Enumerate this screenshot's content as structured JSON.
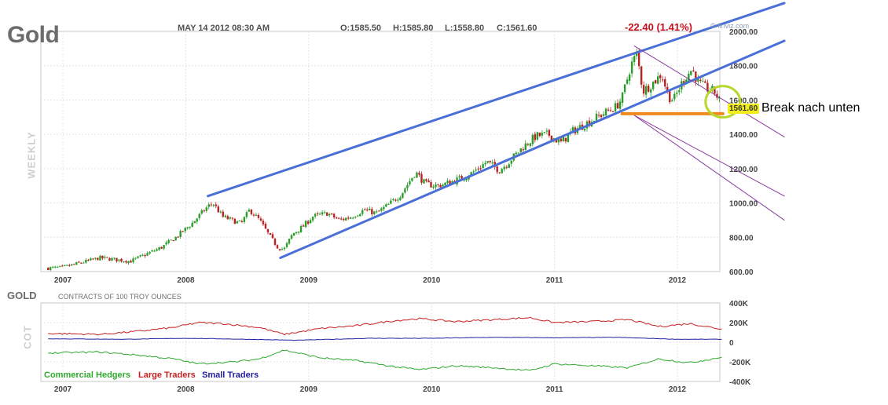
{
  "header": {
    "title": "Gold",
    "date": "MAY 14 2012 08:30 AM",
    "open": "O:1585.50",
    "high": "H:1585.80",
    "low": "L:1558.80",
    "close": "C:1561.60",
    "change": "-22.40 (1.41%)",
    "brand": "© finviz.com",
    "period": "WEEKLY"
  },
  "annotation": {
    "text": "Break nach unten",
    "last_price": "1561.60"
  },
  "cot": {
    "title": "GOLD",
    "subtitle": "CONTRACTS OF 100 TROY OUNCES",
    "axis_label": "COT",
    "legend": [
      {
        "label": "Commercial Hedgers",
        "color": "#2ea82e"
      },
      {
        "label": "Large Traders",
        "color": "#c82020"
      },
      {
        "label": "Small Traders",
        "color": "#2020a0"
      }
    ]
  },
  "colors": {
    "up": "#2a9d2a",
    "down": "#b82222",
    "channel": "#4a6fd6",
    "fork": "#8a3aa0",
    "support": "#f08a1e",
    "circle": "#b6d82a"
  },
  "chart_data": [
    {
      "type": "candlestick",
      "title": "Gold",
      "ylabel": "",
      "x_ticks": [
        "2007",
        "2008",
        "2009",
        "2010",
        "2011",
        "2012"
      ],
      "x_range": [
        2006.88,
        2012.42
      ],
      "y_ticks": [
        "600.00",
        "800.00",
        "1000.00",
        "1200.00",
        "1400.00",
        "1600.00",
        "1800.00",
        "2000.00"
      ],
      "ylim": [
        600,
        2000
      ],
      "price_anchors": [
        [
          2006.88,
          620
        ],
        [
          2007.0,
          625
        ],
        [
          2007.3,
          680
        ],
        [
          2007.55,
          660
        ],
        [
          2007.8,
          740
        ],
        [
          2007.92,
          800
        ],
        [
          2008.05,
          880
        ],
        [
          2008.18,
          980
        ],
        [
          2008.22,
          1000
        ],
        [
          2008.3,
          920
        ],
        [
          2008.45,
          880
        ],
        [
          2008.52,
          960
        ],
        [
          2008.6,
          900
        ],
        [
          2008.67,
          820
        ],
        [
          2008.75,
          740
        ],
        [
          2008.8,
          730
        ],
        [
          2008.87,
          820
        ],
        [
          2008.95,
          860
        ],
        [
          2009.03,
          920
        ],
        [
          2009.15,
          940
        ],
        [
          2009.25,
          900
        ],
        [
          2009.35,
          920
        ],
        [
          2009.45,
          960
        ],
        [
          2009.55,
          940
        ],
        [
          2009.65,
          990
        ],
        [
          2009.75,
          1050
        ],
        [
          2009.87,
          1180
        ],
        [
          2009.95,
          1110
        ],
        [
          2010.05,
          1100
        ],
        [
          2010.15,
          1120
        ],
        [
          2010.3,
          1160
        ],
        [
          2010.45,
          1240
        ],
        [
          2010.55,
          1190
        ],
        [
          2010.6,
          1220
        ],
        [
          2010.75,
          1330
        ],
        [
          2010.85,
          1390
        ],
        [
          2010.95,
          1400
        ],
        [
          2011.05,
          1350
        ],
        [
          2011.15,
          1420
        ],
        [
          2011.3,
          1480
        ],
        [
          2011.42,
          1530
        ],
        [
          2011.5,
          1560
        ],
        [
          2011.55,
          1610
        ],
        [
          2011.62,
          1800
        ],
        [
          2011.67,
          1870
        ],
        [
          2011.72,
          1650
        ],
        [
          2011.8,
          1700
        ],
        [
          2011.87,
          1750
        ],
        [
          2011.93,
          1620
        ],
        [
          2011.97,
          1600
        ],
        [
          2012.05,
          1720
        ],
        [
          2012.12,
          1780
        ],
        [
          2012.17,
          1700
        ],
        [
          2012.23,
          1670
        ],
        [
          2012.3,
          1650
        ],
        [
          2012.37,
          1561.6
        ]
      ],
      "annotations": [
        {
          "type": "channel_upper",
          "from": [
            2008.18,
            1040
          ],
          "to": [
            2012.87,
            2165
          ]
        },
        {
          "type": "channel_lower",
          "from": [
            2008.77,
            680
          ],
          "to": [
            2012.87,
            1945
          ]
        },
        {
          "type": "fork_median",
          "from": [
            2011.65,
            1915
          ],
          "to": [
            2012.87,
            1385
          ]
        },
        {
          "type": "fork_lower_1",
          "from": [
            2011.65,
            1510
          ],
          "to": [
            2012.87,
            1040
          ]
        },
        {
          "type": "fork_lower_2",
          "from": [
            2011.65,
            1510
          ],
          "to": [
            2012.87,
            900
          ]
        },
        {
          "type": "support",
          "from": [
            2011.55,
            1520
          ],
          "to": [
            2012.37,
            1520
          ]
        }
      ]
    },
    {
      "type": "line",
      "title": "GOLD",
      "subtitle": "CONTRACTS OF 100 TROY OUNCES",
      "x_ticks": [
        "2007",
        "2008",
        "2009",
        "2010",
        "2011",
        "2012"
      ],
      "x_range": [
        2006.88,
        2012.42
      ],
      "y_ticks": [
        "400K",
        "200K",
        "0",
        "-200K",
        "-400K"
      ],
      "ylim": [
        -400,
        400
      ],
      "series": [
        {
          "name": "Large Traders",
          "anchors": [
            [
              2006.88,
              90
            ],
            [
              2007.3,
              80
            ],
            [
              2007.6,
              110
            ],
            [
              2007.9,
              150
            ],
            [
              2008.1,
              200
            ],
            [
              2008.3,
              190
            ],
            [
              2008.6,
              150
            ],
            [
              2008.8,
              80
            ],
            [
              2009.1,
              140
            ],
            [
              2009.4,
              170
            ],
            [
              2009.7,
              220
            ],
            [
              2009.9,
              240
            ],
            [
              2010.2,
              210
            ],
            [
              2010.5,
              230
            ],
            [
              2010.8,
              250
            ],
            [
              2011.0,
              200
            ],
            [
              2011.3,
              210
            ],
            [
              2011.6,
              230
            ],
            [
              2011.85,
              160
            ],
            [
              2012.1,
              190
            ],
            [
              2012.37,
              130
            ]
          ]
        },
        {
          "name": "Small Traders",
          "anchors": [
            [
              2006.88,
              35
            ],
            [
              2007.5,
              30
            ],
            [
              2008.0,
              40
            ],
            [
              2008.5,
              30
            ],
            [
              2008.9,
              20
            ],
            [
              2009.5,
              40
            ],
            [
              2010.0,
              40
            ],
            [
              2010.5,
              50
            ],
            [
              2011.0,
              45
            ],
            [
              2011.5,
              50
            ],
            [
              2012.0,
              30
            ],
            [
              2012.37,
              30
            ]
          ]
        },
        {
          "name": "Commercial Hedgers",
          "anchors": [
            [
              2006.88,
              -110
            ],
            [
              2007.3,
              -100
            ],
            [
              2007.6,
              -130
            ],
            [
              2007.9,
              -170
            ],
            [
              2008.1,
              -220
            ],
            [
              2008.4,
              -200
            ],
            [
              2008.6,
              -170
            ],
            [
              2008.8,
              -80
            ],
            [
              2009.1,
              -160
            ],
            [
              2009.4,
              -190
            ],
            [
              2009.7,
              -250
            ],
            [
              2009.9,
              -280
            ],
            [
              2010.2,
              -240
            ],
            [
              2010.5,
              -260
            ],
            [
              2010.8,
              -290
            ],
            [
              2011.0,
              -220
            ],
            [
              2011.3,
              -240
            ],
            [
              2011.6,
              -260
            ],
            [
              2011.85,
              -170
            ],
            [
              2012.1,
              -210
            ],
            [
              2012.37,
              -150
            ]
          ]
        }
      ]
    }
  ]
}
